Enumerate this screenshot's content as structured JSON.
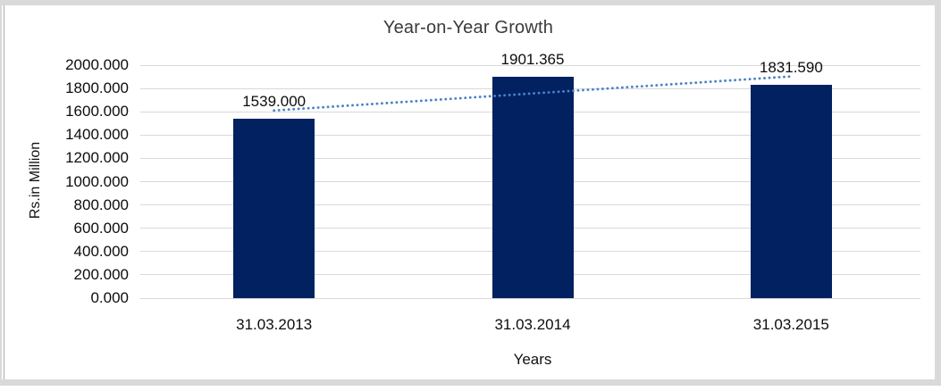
{
  "frame": {
    "border_color": "#d9d9d9"
  },
  "chart_data": {
    "type": "bar",
    "title": "Year-on-Year Growth",
    "categories": [
      "31.03.2013",
      "31.03.2014",
      "31.03.2015"
    ],
    "values": [
      1539.0,
      1901.365,
      1831.59
    ],
    "data_labels": [
      "1539.000",
      "1901.365",
      "1831.590"
    ],
    "xlabel": "Years",
    "ylabel": "Rs.in Million",
    "ylim": [
      0,
      2000
    ],
    "ytick_labels": [
      "0.000",
      "200.000",
      "400.000",
      "600.000",
      "800.000",
      "1000.000",
      "1200.000",
      "1400.000",
      "1600.000",
      "1800.000",
      "2000.000"
    ],
    "grid": true,
    "legend": "none",
    "bar_color": "#022160",
    "gridline_color": "#d9d9d9",
    "trendline": {
      "type": "linear",
      "style": "dotted",
      "color": "#4a82c8"
    }
  }
}
